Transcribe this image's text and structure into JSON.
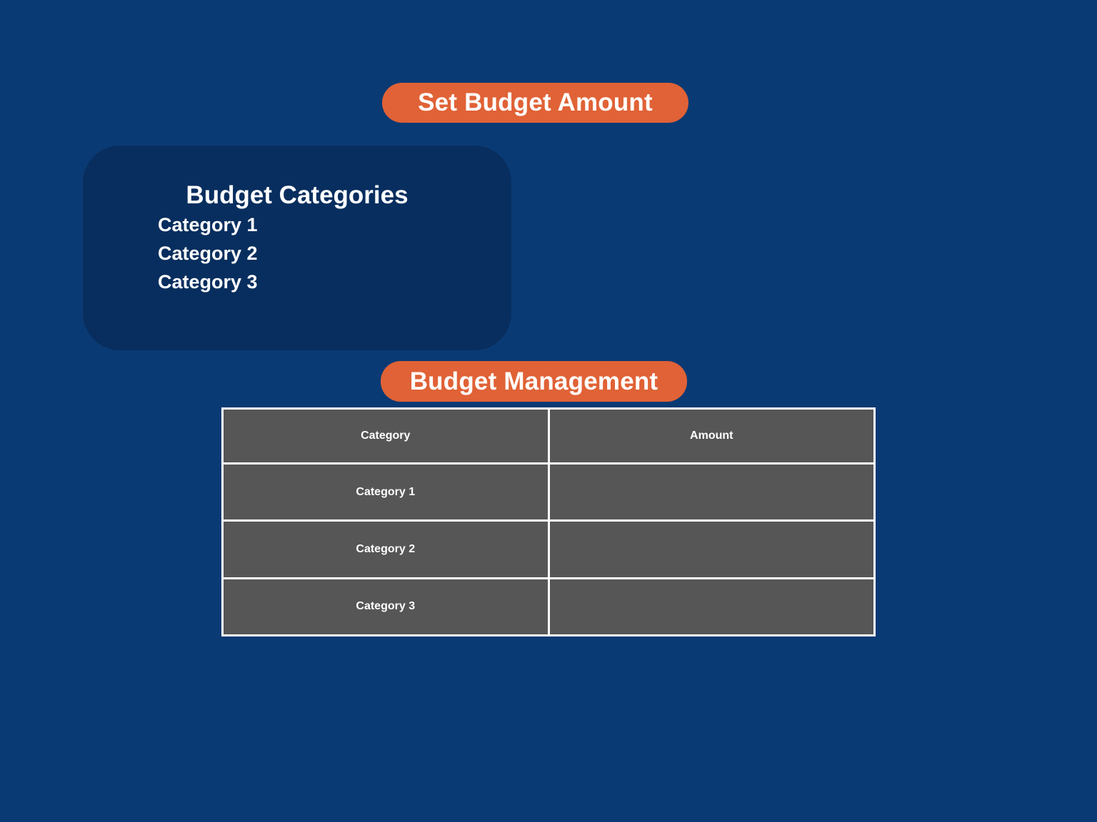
{
  "actions": {
    "set_budget_label": "Set Budget Amount",
    "budget_management_label": "Budget Management"
  },
  "categories_panel": {
    "title": "Budget Categories",
    "items": [
      "Category 1",
      "Category 2",
      "Category 3"
    ]
  },
  "table": {
    "headers": [
      "Category",
      "Amount"
    ],
    "rows": [
      {
        "category": "Category 1",
        "amount": ""
      },
      {
        "category": "Category 2",
        "amount": ""
      },
      {
        "category": "Category 3",
        "amount": ""
      }
    ]
  },
  "colors": {
    "background": "#0a3a74",
    "panel": "#072e5e",
    "accent": "#e06236",
    "table_cell": "#565656",
    "table_border": "#ffffff"
  }
}
